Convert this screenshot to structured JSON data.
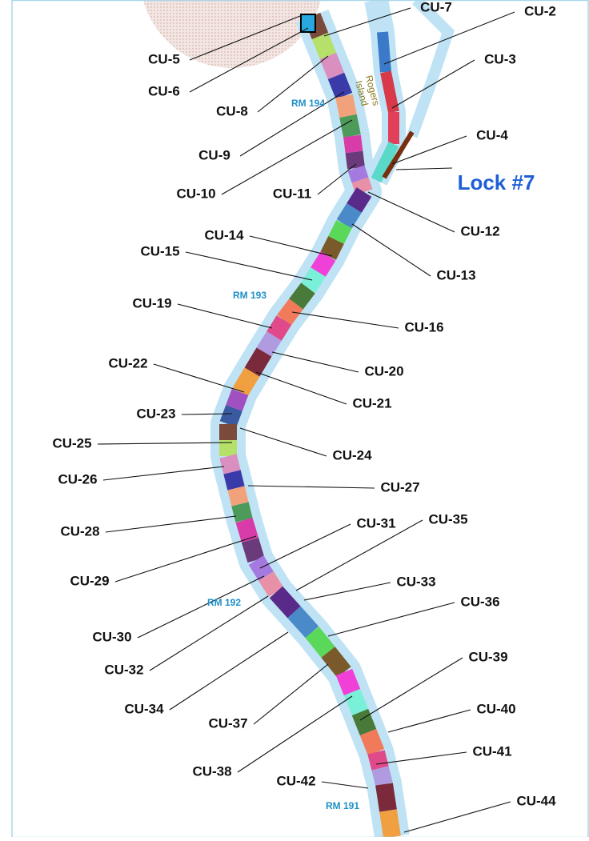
{
  "labels": [
    "CU-7",
    "CU-2",
    "CU-3",
    "CU-4",
    "CU-5",
    "CU-6",
    "CU-8",
    "CU-9",
    "CU-10",
    "CU-11",
    "CU-12",
    "CU-13",
    "CU-14",
    "CU-15",
    "CU-19",
    "CU-16",
    "CU-20",
    "CU-22",
    "CU-21",
    "CU-23",
    "CU-25",
    "CU-24",
    "CU-26",
    "CU-27",
    "CU-28",
    "CU-31",
    "CU-35",
    "CU-29",
    "CU-33",
    "CU-36",
    "CU-30",
    "CU-32",
    "CU-39",
    "CU-34",
    "CU-40",
    "CU-37",
    "CU-38",
    "CU-41",
    "CU-42",
    "CU-44"
  ],
  "lock": "Lock #7",
  "island": [
    "Rogers",
    "Island"
  ],
  "river_miles": [
    "RM 194",
    "RM 193",
    "RM 192",
    "RM 191"
  ]
}
